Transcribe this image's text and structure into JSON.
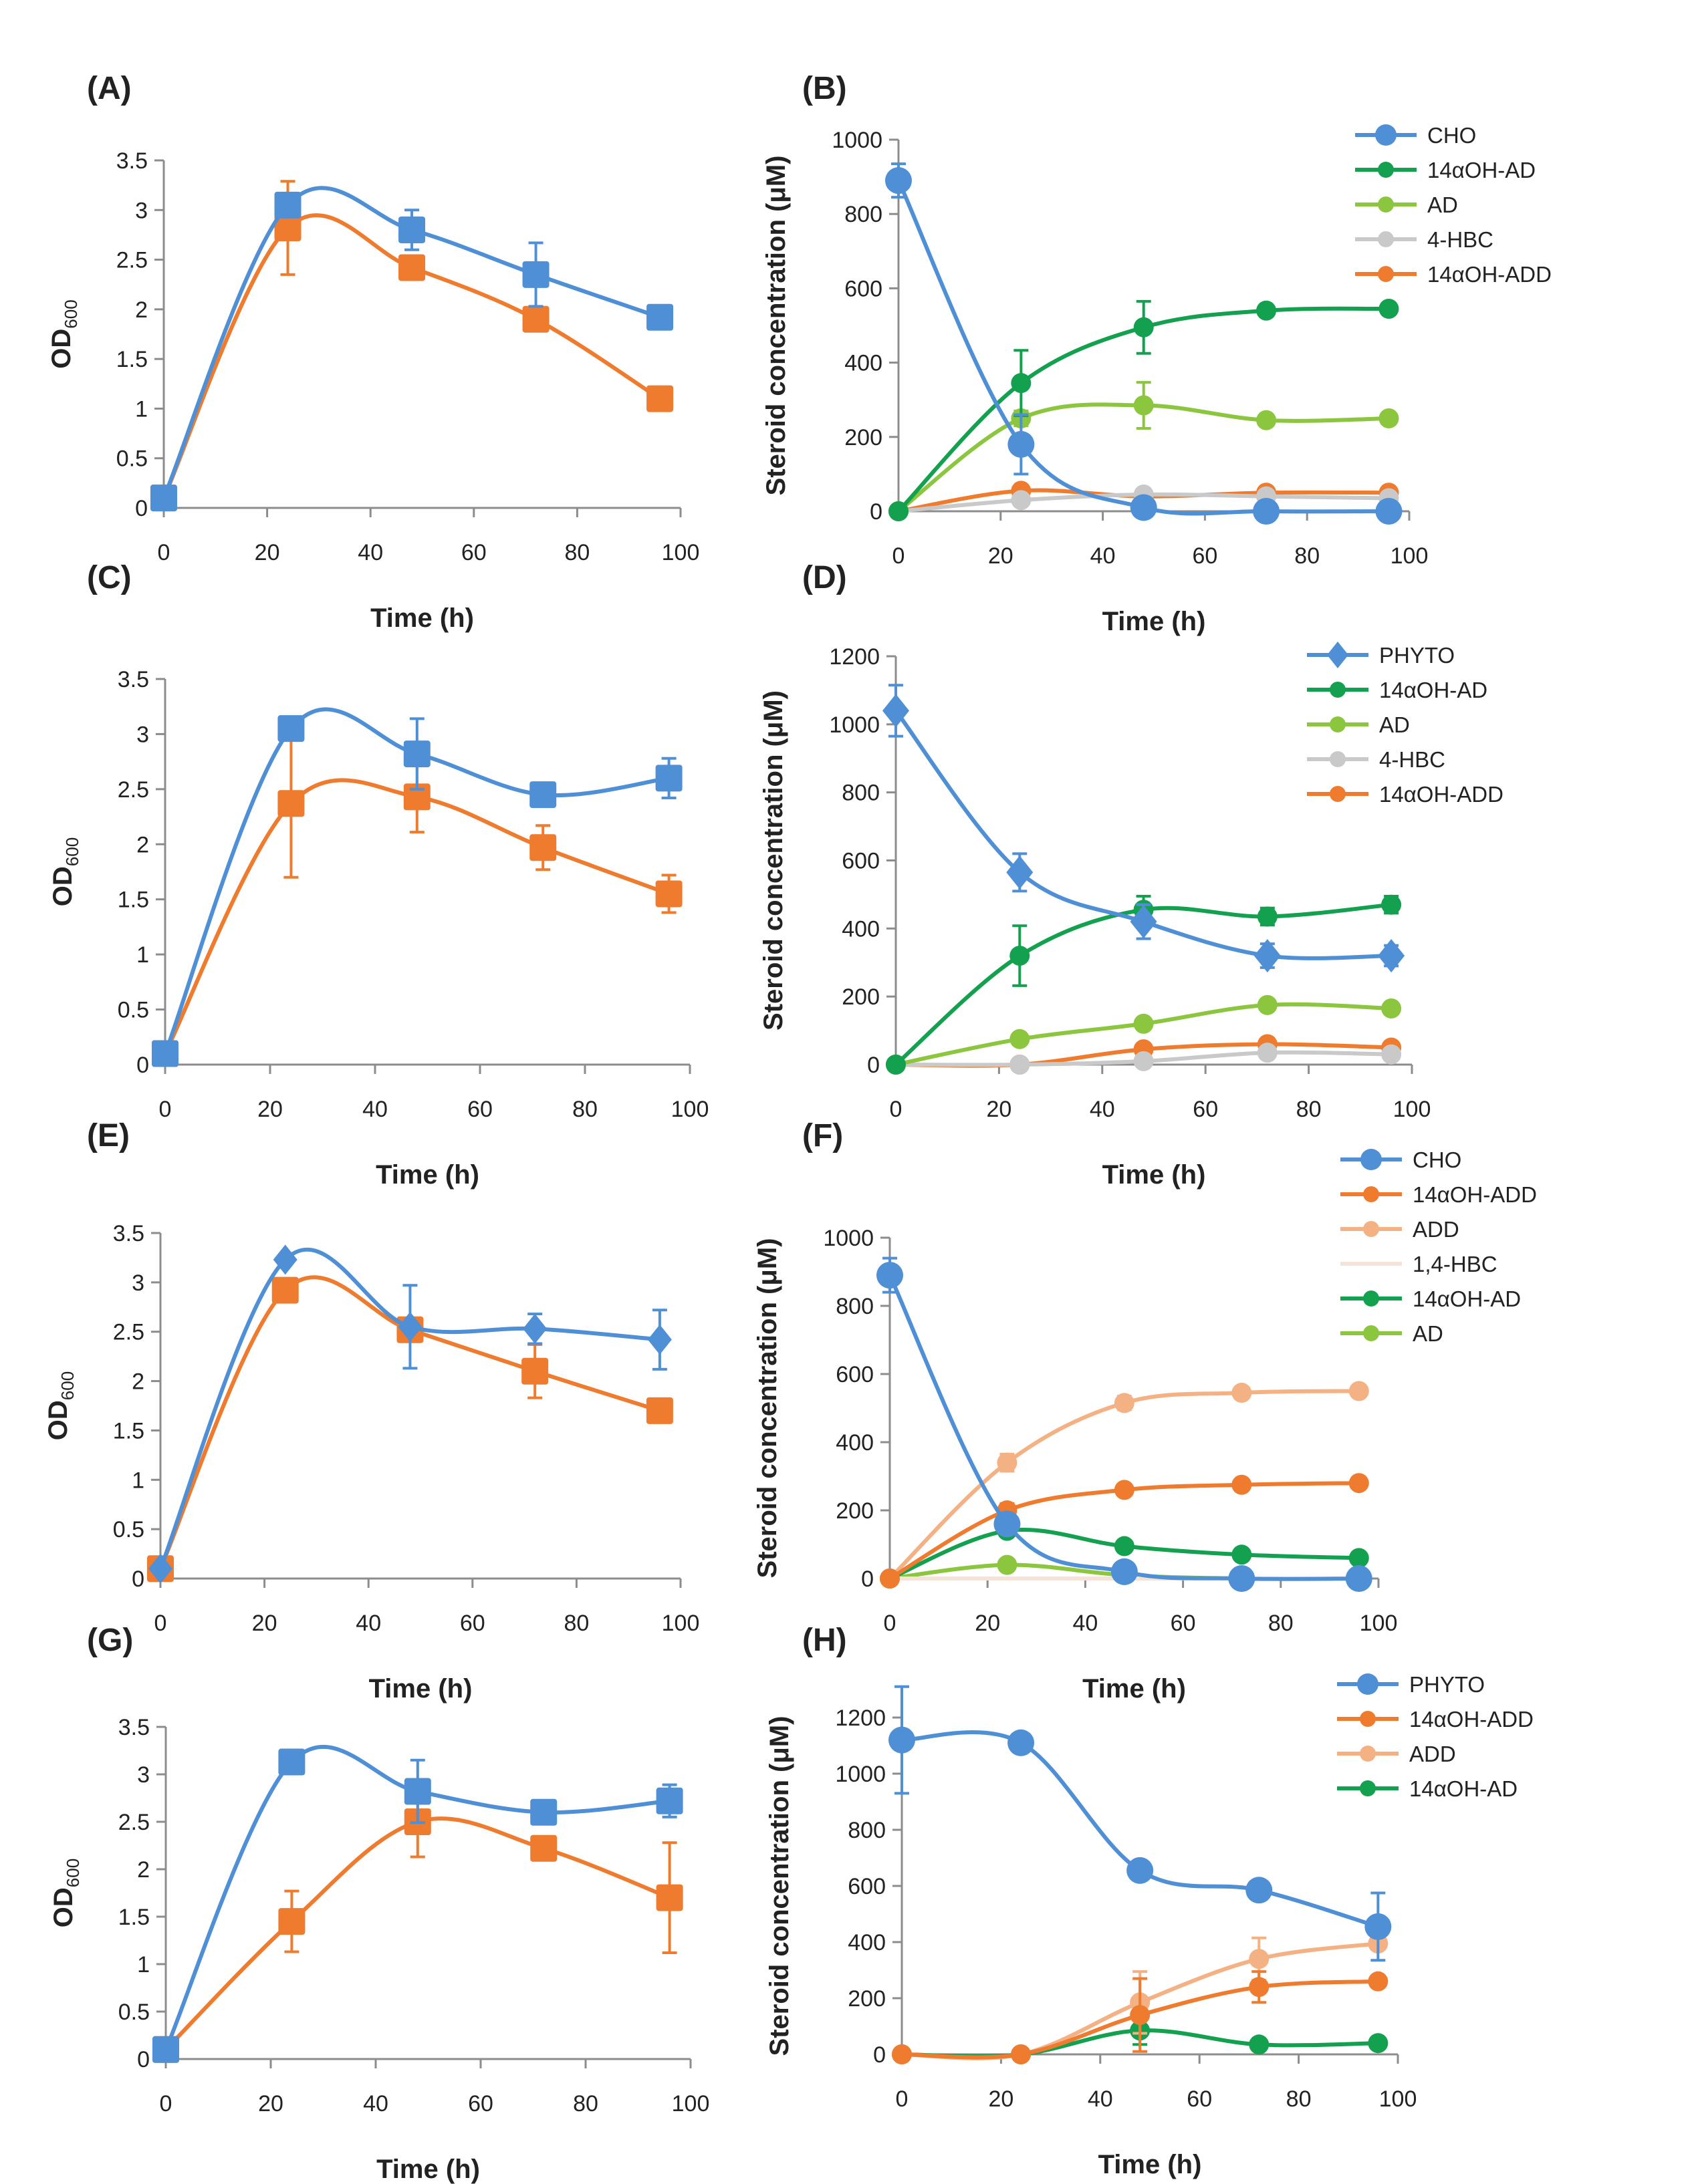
{
  "figure": {
    "panels_note": "Eight panels A–H: growth (OD600) and steroid concentration time courses",
    "colors": {
      "blue": "#4e8fd6",
      "orange": "#ee7b2e",
      "dark_green": "#13a04f",
      "light_green": "#8cc63f",
      "grey": "#c9c9c9",
      "salmon": "#f4b183",
      "faint_peach": "#f6e3d8"
    }
  },
  "chart_data": [
    {
      "id": "A",
      "label": "(A)",
      "type": "line",
      "xlabel": "Time (h)",
      "ylabel_main": "OD",
      "ylabel_sub": "600",
      "xlim": [
        0,
        100
      ],
      "xticks": [
        0,
        20,
        40,
        60,
        80,
        100
      ],
      "xtick_labels": [
        "0",
        "20",
        "40",
        "60",
        "80",
        "100"
      ],
      "ylim": [
        0,
        3.5
      ],
      "yticks": [
        0,
        0.5,
        1,
        1.5,
        2,
        2.5,
        3,
        3.5
      ],
      "ytick_labels": [
        "0",
        "0.5",
        "1",
        "1.5",
        "2",
        "2.5",
        "3",
        "3.5"
      ],
      "grid": false,
      "legend": null,
      "x": [
        0,
        24,
        48,
        72,
        96
      ],
      "series": [
        {
          "name": "blue",
          "color": "#4e8fd6",
          "marker": "square",
          "values": [
            0.1,
            3.05,
            2.8,
            2.35,
            1.92
          ],
          "errors": [
            0,
            0.05,
            0.2,
            0.32,
            0.05
          ]
        },
        {
          "name": "orange",
          "color": "#ee7b2e",
          "marker": "square",
          "values": [
            0.1,
            2.82,
            2.42,
            1.9,
            1.1
          ],
          "errors": [
            0,
            0.47,
            0.05,
            0.05,
            0.05
          ]
        }
      ]
    },
    {
      "id": "B",
      "label": "(B)",
      "type": "line",
      "xlabel": "Time (h)",
      "ylabel_main": "Steroid concentration (μM)",
      "xlim": [
        0,
        100
      ],
      "xticks": [
        0,
        20,
        40,
        60,
        80,
        100
      ],
      "xtick_labels": [
        "0",
        "20",
        "40",
        "60",
        "80",
        "100"
      ],
      "ylim": [
        0,
        1000
      ],
      "yticks": [
        0,
        200,
        400,
        600,
        800,
        1000
      ],
      "ytick_labels": [
        "0",
        "200",
        "400",
        "600",
        "800",
        "1000"
      ],
      "grid": false,
      "legend": "top-right",
      "x": [
        0,
        24,
        48,
        72,
        96
      ],
      "series": [
        {
          "name": "CHO",
          "color": "#4e8fd6",
          "marker": "circle",
          "values": [
            890,
            180,
            10,
            0,
            0
          ],
          "errors": [
            45,
            80,
            0,
            0,
            0
          ]
        },
        {
          "name": "14αOH-AD",
          "color": "#13a04f",
          "marker": "circle",
          "values": [
            0,
            345,
            495,
            540,
            545
          ],
          "errors": [
            0,
            88,
            70,
            10,
            10
          ]
        },
        {
          "name": "AD",
          "color": "#8cc63f",
          "marker": "circle",
          "values": [
            0,
            250,
            285,
            245,
            250
          ],
          "errors": [
            0,
            20,
            62,
            5,
            5
          ]
        },
        {
          "name": "4-HBC",
          "color": "#c9c9c9",
          "marker": "circle",
          "values": [
            0,
            30,
            45,
            40,
            35
          ],
          "errors": [
            0,
            0,
            0,
            0,
            0
          ]
        },
        {
          "name": "14αOH-ADD",
          "color": "#ee7b2e",
          "marker": "circle",
          "values": [
            0,
            55,
            40,
            50,
            50
          ],
          "errors": [
            0,
            5,
            5,
            5,
            5
          ]
        }
      ]
    },
    {
      "id": "C",
      "label": "(C)",
      "type": "line",
      "xlabel": "Time (h)",
      "ylabel_main": "OD",
      "ylabel_sub": "600",
      "xlim": [
        0,
        100
      ],
      "xticks": [
        0,
        20,
        40,
        60,
        80,
        100
      ],
      "xtick_labels": [
        "0",
        "20",
        "40",
        "60",
        "80",
        "100"
      ],
      "ylim": [
        0,
        3.5
      ],
      "yticks": [
        0,
        0.5,
        1,
        1.5,
        2,
        2.5,
        3,
        3.5
      ],
      "ytick_labels": [
        "0",
        "0.5",
        "1",
        "1.5",
        "2",
        "2.5",
        "3",
        "3.5"
      ],
      "grid": false,
      "legend": null,
      "x": [
        0,
        24,
        48,
        72,
        96
      ],
      "series": [
        {
          "name": "blue",
          "color": "#4e8fd6",
          "marker": "square",
          "values": [
            0.1,
            3.05,
            2.82,
            2.45,
            2.6
          ],
          "errors": [
            0,
            0.05,
            0.32,
            0.08,
            0.18
          ]
        },
        {
          "name": "orange",
          "color": "#ee7b2e",
          "marker": "square",
          "values": [
            0.1,
            2.37,
            2.43,
            1.97,
            1.55
          ],
          "errors": [
            0,
            0.67,
            0.32,
            0.2,
            0.17
          ]
        }
      ]
    },
    {
      "id": "D",
      "label": "(D)",
      "type": "line",
      "xlabel": "Time (h)",
      "ylabel_main": "Steroid concentration (μM)",
      "xlim": [
        0,
        100
      ],
      "xticks": [
        0,
        20,
        40,
        60,
        80,
        100
      ],
      "xtick_labels": [
        "0",
        "20",
        "40",
        "60",
        "80",
        "100"
      ],
      "ylim": [
        0,
        1200
      ],
      "yticks": [
        0,
        200,
        400,
        600,
        800,
        1000,
        1200
      ],
      "ytick_labels": [
        "0",
        "200",
        "400",
        "600",
        "800",
        "1000",
        "1200"
      ],
      "grid": false,
      "legend": "top-right",
      "x": [
        0,
        24,
        48,
        72,
        96
      ],
      "series": [
        {
          "name": "PHYTO",
          "color": "#4e8fd6",
          "marker": "diamond",
          "values": [
            1040,
            565,
            420,
            320,
            320
          ],
          "errors": [
            75,
            55,
            50,
            35,
            30
          ]
        },
        {
          "name": "14αOH-AD",
          "color": "#13a04f",
          "marker": "circle",
          "values": [
            0,
            320,
            455,
            435,
            470
          ],
          "errors": [
            0,
            88,
            40,
            25,
            25
          ]
        },
        {
          "name": "AD",
          "color": "#8cc63f",
          "marker": "circle",
          "values": [
            0,
            75,
            120,
            175,
            165
          ],
          "errors": [
            0,
            10,
            10,
            10,
            10
          ]
        },
        {
          "name": "4-HBC",
          "color": "#c9c9c9",
          "marker": "circle",
          "values": [
            0,
            0,
            10,
            35,
            30
          ],
          "errors": [
            0,
            0,
            0,
            0,
            0
          ]
        },
        {
          "name": "14αOH-ADD",
          "color": "#ee7b2e",
          "marker": "circle",
          "values": [
            0,
            0,
            45,
            60,
            50
          ],
          "errors": [
            0,
            0,
            5,
            5,
            5
          ]
        }
      ]
    },
    {
      "id": "E",
      "label": "(E)",
      "type": "line",
      "xlabel": "Time (h)",
      "ylabel_main": "OD",
      "ylabel_sub": "600",
      "xlim": [
        0,
        100
      ],
      "xticks": [
        0,
        20,
        40,
        60,
        80,
        100
      ],
      "xtick_labels": [
        "0",
        "20",
        "40",
        "60",
        "80",
        "100"
      ],
      "ylim": [
        0,
        3.5
      ],
      "yticks": [
        0,
        0.5,
        1,
        1.5,
        2,
        2.5,
        3,
        3.5
      ],
      "ytick_labels": [
        "0",
        "0.5",
        "1",
        "1.5",
        "2",
        "2.5",
        "3",
        "3.5"
      ],
      "grid": false,
      "legend": null,
      "x": [
        0,
        24,
        48,
        72,
        96
      ],
      "series": [
        {
          "name": "blue",
          "color": "#4e8fd6",
          "marker": "diamond",
          "values": [
            0.1,
            3.23,
            2.55,
            2.53,
            2.42
          ],
          "errors": [
            0,
            0.03,
            0.42,
            0.15,
            0.3
          ]
        },
        {
          "name": "orange",
          "color": "#ee7b2e",
          "marker": "square",
          "values": [
            0.1,
            2.92,
            2.52,
            2.1,
            1.7
          ],
          "errors": [
            0,
            0.05,
            0.12,
            0.27,
            0.05
          ]
        }
      ]
    },
    {
      "id": "F",
      "label": "(F)",
      "type": "line",
      "xlabel": "Time (h)",
      "ylabel_main": "Steroid concentration (μM)",
      "xlim": [
        0,
        100
      ],
      "xticks": [
        0,
        20,
        40,
        60,
        80,
        100
      ],
      "xtick_labels": [
        "0",
        "20",
        "40",
        "60",
        "80",
        "100"
      ],
      "ylim": [
        0,
        1000
      ],
      "yticks": [
        0,
        200,
        400,
        600,
        800,
        1000
      ],
      "ytick_labels": [
        "0",
        "200",
        "400",
        "600",
        "800",
        "1000"
      ],
      "grid": false,
      "legend": "top-right",
      "x": [
        0,
        24,
        48,
        72,
        96
      ],
      "series": [
        {
          "name": "CHO",
          "color": "#4e8fd6",
          "marker": "circle",
          "values": [
            890,
            160,
            20,
            0,
            0
          ],
          "errors": [
            50,
            0,
            0,
            0,
            0
          ]
        },
        {
          "name": "14αOH-ADD",
          "color": "#ee7b2e",
          "marker": "circle",
          "values": [
            0,
            200,
            260,
            275,
            280
          ],
          "errors": [
            0,
            20,
            10,
            10,
            10
          ]
        },
        {
          "name": "ADD",
          "color": "#f4b183",
          "marker": "circle",
          "values": [
            0,
            340,
            515,
            545,
            550
          ],
          "errors": [
            0,
            25,
            20,
            10,
            10
          ]
        },
        {
          "name": "1,4-HBC",
          "color": "#f6e3d8",
          "marker": "none",
          "values": [
            0,
            0,
            0,
            0,
            0
          ],
          "errors": [
            0,
            0,
            0,
            0,
            0
          ]
        },
        {
          "name": "14αOH-AD",
          "color": "#13a04f",
          "marker": "circle",
          "values": [
            0,
            140,
            95,
            70,
            60
          ],
          "errors": [
            0,
            10,
            5,
            5,
            5
          ]
        },
        {
          "name": "AD",
          "color": "#8cc63f",
          "marker": "circle",
          "values": [
            0,
            40,
            10,
            0,
            0
          ],
          "errors": [
            0,
            5,
            0,
            0,
            0
          ]
        }
      ]
    },
    {
      "id": "G",
      "label": "(G)",
      "type": "line",
      "xlabel": "Time (h)",
      "ylabel_main": "OD",
      "ylabel_sub": "600",
      "xlim": [
        0,
        100
      ],
      "xticks": [
        0,
        20,
        40,
        60,
        80,
        100
      ],
      "xtick_labels": [
        "0",
        "20",
        "40",
        "60",
        "80",
        "100"
      ],
      "ylim": [
        0,
        3.5
      ],
      "yticks": [
        0,
        0.5,
        1,
        1.5,
        2,
        2.5,
        3,
        3.5
      ],
      "ytick_labels": [
        "0",
        "0.5",
        "1",
        "1.5",
        "2",
        "2.5",
        "3",
        "3.5"
      ],
      "grid": false,
      "legend": null,
      "x": [
        0,
        24,
        48,
        72,
        96
      ],
      "series": [
        {
          "name": "blue",
          "color": "#4e8fd6",
          "marker": "square",
          "values": [
            0.1,
            3.13,
            2.82,
            2.6,
            2.72
          ],
          "errors": [
            0,
            0.1,
            0.33,
            0.05,
            0.17
          ]
        },
        {
          "name": "orange",
          "color": "#ee7b2e",
          "marker": "square",
          "values": [
            0.1,
            1.45,
            2.5,
            2.22,
            1.7
          ],
          "errors": [
            0,
            0.32,
            0.37,
            0.05,
            0.58
          ]
        }
      ]
    },
    {
      "id": "H",
      "label": "(H)",
      "type": "line",
      "xlabel": "Time (h)",
      "ylabel_main": "Steroid concentration (μM)",
      "xlim": [
        0,
        100
      ],
      "xticks": [
        0,
        20,
        40,
        60,
        80,
        100
      ],
      "xtick_labels": [
        "0",
        "20",
        "40",
        "60",
        "80",
        "100"
      ],
      "ylim": [
        0,
        1200
      ],
      "yticks": [
        0,
        200,
        400,
        600,
        800,
        1000,
        1200
      ],
      "ytick_labels": [
        "0",
        "200",
        "400",
        "600",
        "800",
        "1000",
        "1200"
      ],
      "grid": false,
      "legend": "top-right",
      "x": [
        0,
        24,
        48,
        72,
        96
      ],
      "series": [
        {
          "name": "PHYTO",
          "color": "#4e8fd6",
          "marker": "circle",
          "values": [
            1120,
            1110,
            655,
            585,
            455
          ],
          "errors": [
            190,
            0,
            0,
            0,
            120
          ]
        },
        {
          "name": "14αOH-ADD",
          "color": "#ee7b2e",
          "marker": "circle",
          "values": [
            0,
            0,
            140,
            240,
            260
          ],
          "errors": [
            0,
            0,
            130,
            55,
            10
          ]
        },
        {
          "name": "ADD",
          "color": "#f4b183",
          "marker": "circle",
          "values": [
            0,
            0,
            185,
            340,
            395
          ],
          "errors": [
            0,
            0,
            110,
            75,
            10
          ]
        },
        {
          "name": "14αOH-AD",
          "color": "#13a04f",
          "marker": "circle",
          "values": [
            0,
            0,
            85,
            35,
            40
          ],
          "errors": [
            0,
            0,
            50,
            5,
            5
          ]
        }
      ]
    }
  ]
}
